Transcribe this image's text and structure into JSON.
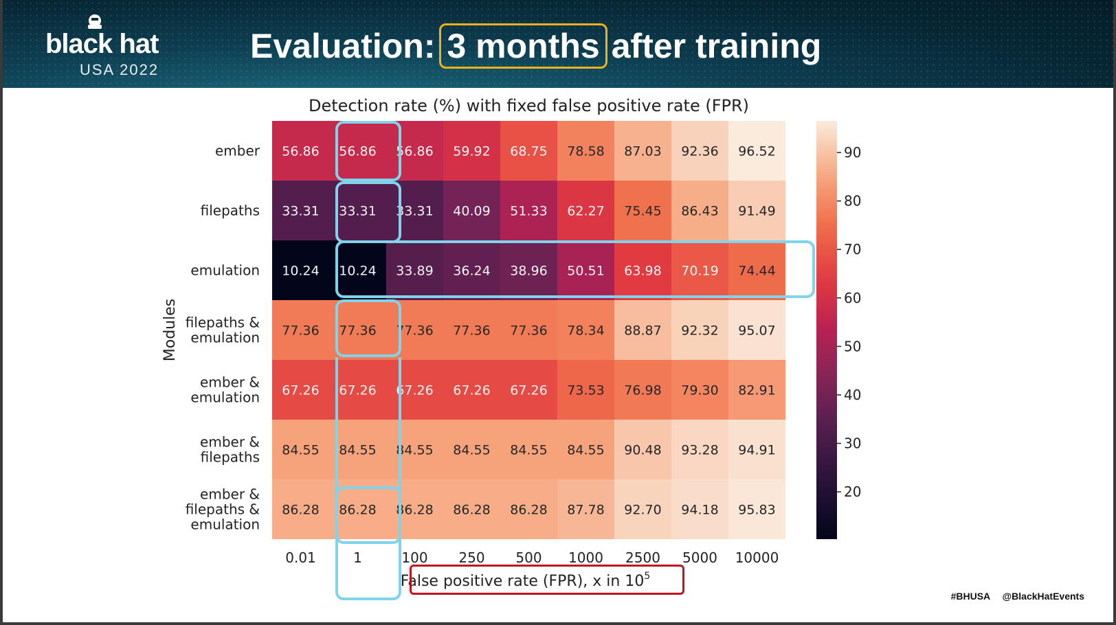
{
  "header": {
    "logo_brand": "black hat",
    "logo_event": "USA 2022",
    "title_before": "Evaluation:",
    "title_highlight": "3 months",
    "title_after": "after training"
  },
  "footer": {
    "hashtag": "#BHUSA",
    "handle": "@BlackHatEvents"
  },
  "chart_data": {
    "type": "heatmap",
    "title": "Detection rate (%) with fixed false positive rate (FPR)",
    "xlabel": "False positive rate (FPR), x in 10",
    "xlabel_superscript": "5",
    "ylabel": "Modules",
    "x": [
      "0.01",
      "1",
      "100",
      "250",
      "500",
      "1000",
      "2500",
      "5000",
      "10000"
    ],
    "y": [
      [
        "ember"
      ],
      [
        "filepaths"
      ],
      [
        "emulation"
      ],
      [
        "filepaths &",
        "emulation"
      ],
      [
        "ember &",
        "emulation"
      ],
      [
        "ember &",
        "filepaths"
      ],
      [
        "ember &",
        "filepaths &",
        "emulation"
      ]
    ],
    "values": [
      [
        56.86,
        56.86,
        56.86,
        59.92,
        68.75,
        78.58,
        87.03,
        92.36,
        96.52
      ],
      [
        33.31,
        33.31,
        33.31,
        40.09,
        51.33,
        62.27,
        75.45,
        86.43,
        91.49
      ],
      [
        10.24,
        10.24,
        33.89,
        36.24,
        38.96,
        50.51,
        63.98,
        70.19,
        74.44
      ],
      [
        77.36,
        77.36,
        77.36,
        77.36,
        77.36,
        78.34,
        88.87,
        92.32,
        95.07
      ],
      [
        67.26,
        67.26,
        67.26,
        67.26,
        67.26,
        73.53,
        76.98,
        79.3,
        82.91
      ],
      [
        84.55,
        84.55,
        84.55,
        84.55,
        84.55,
        84.55,
        90.48,
        93.28,
        94.91
      ],
      [
        86.28,
        86.28,
        86.28,
        86.28,
        86.28,
        87.78,
        92.7,
        94.18,
        95.83
      ]
    ],
    "colorbar": {
      "min": 10.24,
      "max": 96.52,
      "ticks": [
        20,
        30,
        40,
        50,
        60,
        70,
        80,
        90
      ]
    },
    "colormap": "rocket",
    "highlight_color": "#7fd3ea",
    "xlabel_box_color": "#c0121f"
  }
}
